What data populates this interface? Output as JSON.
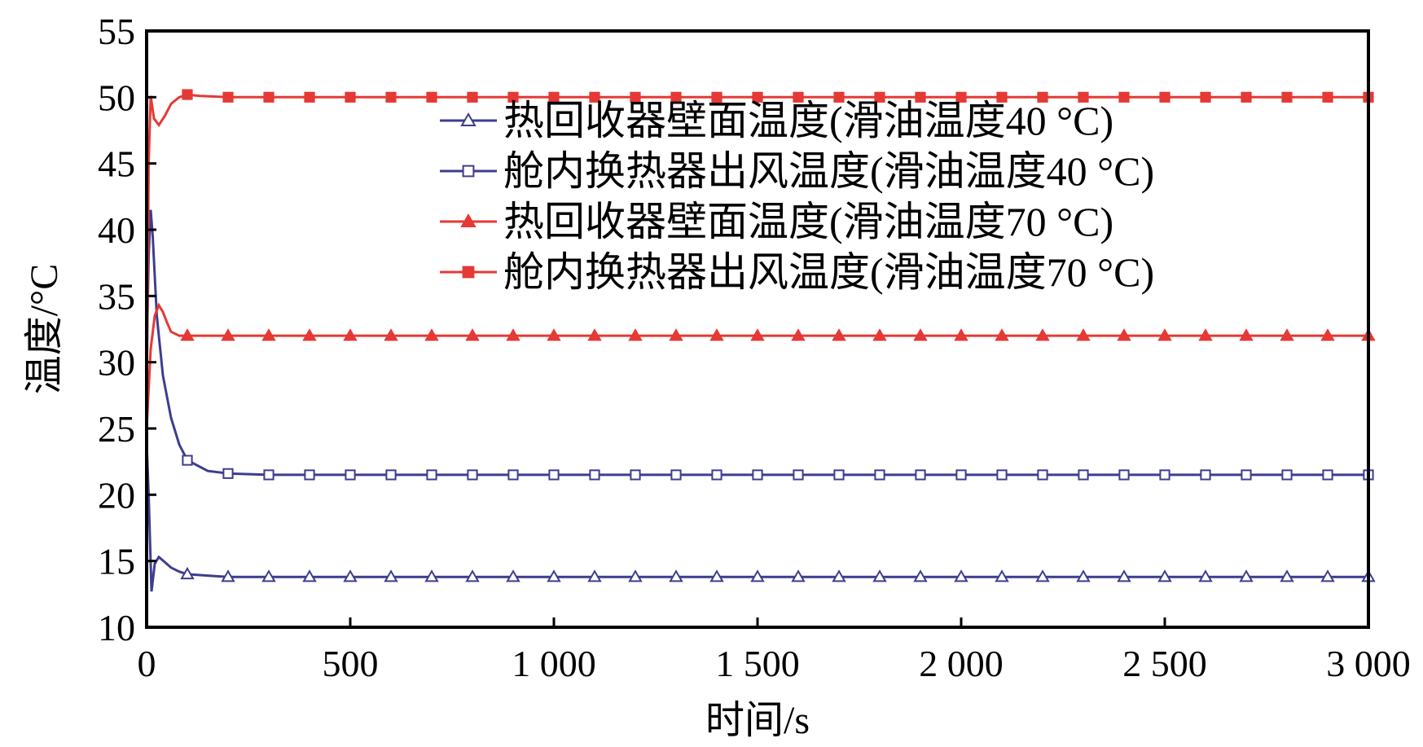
{
  "chart_data": {
    "type": "line",
    "xlabel": "时间/s",
    "ylabel": "温度/°C",
    "xlim": [
      0,
      3000
    ],
    "ylim": [
      10,
      55
    ],
    "x_ticks": [
      0,
      500,
      1000,
      1500,
      2000,
      2500,
      3000
    ],
    "x_tick_labels": [
      "0",
      "500",
      "1 000",
      "1 500",
      "2 000",
      "2 500",
      "3 000"
    ],
    "y_ticks": [
      10,
      15,
      20,
      25,
      30,
      35,
      40,
      45,
      50,
      55
    ],
    "y_tick_labels": [
      "10",
      "15",
      "20",
      "25",
      "30",
      "35",
      "40",
      "45",
      "50",
      "55"
    ],
    "grid": false,
    "legend_position": "upper-right",
    "series": [
      {
        "name": "热回收器壁面温度(滑油温度40 °C)",
        "color": "#3d3d8f",
        "marker": "triangle-open",
        "x": [
          0,
          5,
          12,
          20,
          30,
          45,
          60,
          80,
          100,
          150,
          200,
          300,
          3000
        ],
        "y": [
          24,
          20,
          12.7,
          14.8,
          15.3,
          14.9,
          14.5,
          14.2,
          14.0,
          13.9,
          13.8,
          13.8,
          13.8
        ]
      },
      {
        "name": "舱内换热器出风温度(滑油温度40 °C)",
        "color": "#3d3d8f",
        "marker": "square-open",
        "x": [
          0,
          5,
          10,
          15,
          25,
          40,
          60,
          80,
          100,
          150,
          200,
          300,
          3000
        ],
        "y": [
          30,
          38,
          41.5,
          39.5,
          33.5,
          29.0,
          25.8,
          23.8,
          22.6,
          21.8,
          21.6,
          21.5,
          21.5
        ]
      },
      {
        "name": "热回收器壁面温度(滑油温度70 °C)",
        "color": "#e53935",
        "marker": "triangle-filled",
        "x": [
          0,
          5,
          10,
          20,
          30,
          40,
          50,
          60,
          80,
          100,
          200,
          3000
        ],
        "y": [
          25,
          28,
          31,
          33.5,
          34.3,
          33.8,
          33.0,
          32.3,
          32.0,
          32.0,
          32.0,
          32.0
        ]
      },
      {
        "name": "舱内换热器出风温度(滑油温度70 °C)",
        "color": "#e53935",
        "marker": "square-filled",
        "x": [
          0,
          5,
          10,
          18,
          30,
          45,
          60,
          80,
          100,
          130,
          200,
          3000
        ],
        "y": [
          26,
          45,
          50.1,
          48.4,
          47.9,
          48.6,
          49.5,
          50.0,
          50.2,
          50.1,
          50.0,
          50.0
        ]
      }
    ],
    "marker_interval": 100
  }
}
